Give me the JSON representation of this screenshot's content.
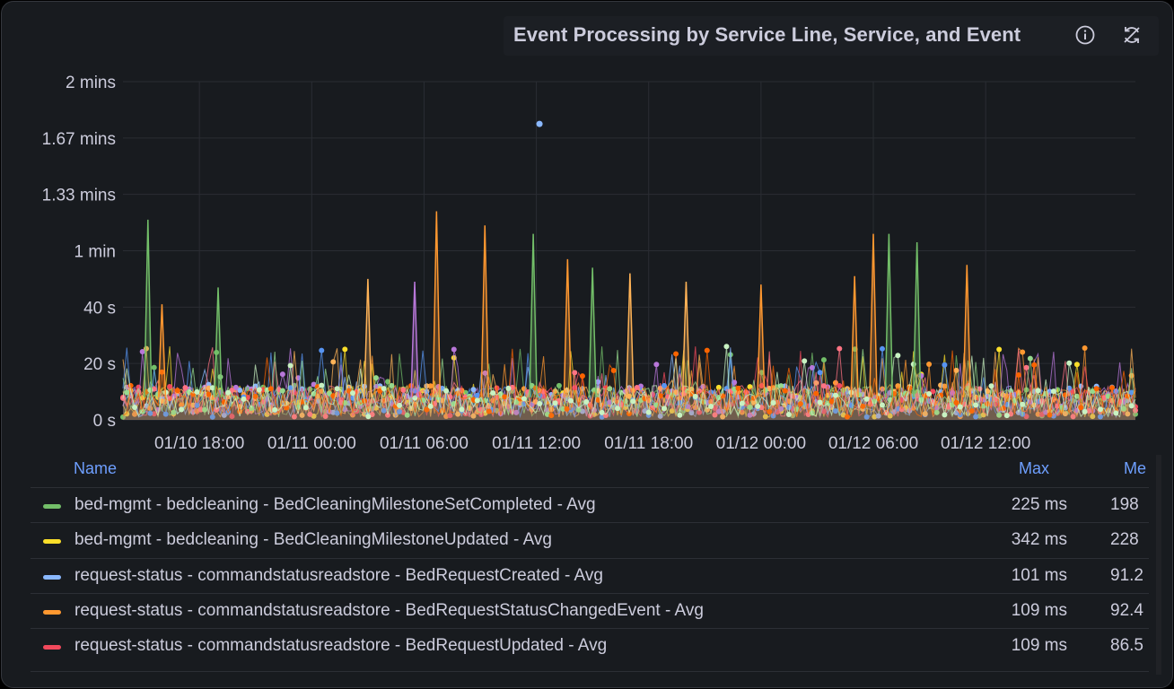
{
  "panel": {
    "title": "Event Processing by Service Line, Service, and Event",
    "icons": [
      "info-icon",
      "sync-off-icon"
    ]
  },
  "chart_data": {
    "type": "line",
    "title": "Event Processing by Service Line, Service, and Event",
    "y_unit": "seconds",
    "ylim": [
      0,
      120
    ],
    "y_ticks": [
      0,
      20,
      40,
      60,
      80,
      100,
      120
    ],
    "y_tick_labels": [
      "0 s",
      "20 s",
      "40 s",
      "1 min",
      "1.33 mins",
      "1.67 mins",
      "2 mins"
    ],
    "x_range": [
      "01/10 13:55",
      "01/12 20:00"
    ],
    "x_tick_labels": [
      "01/10 18:00",
      "01/11 00:00",
      "01/11 06:00",
      "01/11 12:00",
      "01/11 18:00",
      "01/12 00:00",
      "01/12 06:00",
      "01/12 12:00"
    ],
    "grid": true,
    "legend_placement": "bottom",
    "baseline_range_s": [
      1,
      15
    ],
    "peaks": [
      {
        "time": "01/10 15:15",
        "value": 71,
        "color": "#73bf69"
      },
      {
        "time": "01/10 16:00",
        "value": 41,
        "color": "#ff9830"
      },
      {
        "time": "01/10 19:00",
        "value": 47,
        "color": "#73bf69"
      },
      {
        "time": "01/11 03:00",
        "value": 50,
        "color": "#ffb357"
      },
      {
        "time": "01/11 05:30",
        "value": 49,
        "color": "#b877d9"
      },
      {
        "time": "01/11 06:40",
        "value": 74,
        "color": "#ff9830"
      },
      {
        "time": "01/11 09:15",
        "value": 69,
        "color": "#ff9830"
      },
      {
        "time": "01/11 11:50",
        "value": 66,
        "color": "#73bf69"
      },
      {
        "time": "01/11 12:10",
        "value": 105,
        "color": "#8ab8ff",
        "point_only": true
      },
      {
        "time": "01/11 13:40",
        "value": 57,
        "color": "#ff9830"
      },
      {
        "time": "01/11 15:00",
        "value": 54,
        "color": "#73bf69"
      },
      {
        "time": "01/11 17:00",
        "value": 52,
        "color": "#ffb357"
      },
      {
        "time": "01/11 20:00",
        "value": 49,
        "color": "#ffb357"
      },
      {
        "time": "01/12 00:00",
        "value": 48,
        "color": "#ff9830"
      },
      {
        "time": "01/12 05:00",
        "value": 51,
        "color": "#ff9830"
      },
      {
        "time": "01/12 06:00",
        "value": 66,
        "color": "#ff9830"
      },
      {
        "time": "01/12 06:50",
        "value": 66,
        "color": "#73bf69"
      },
      {
        "time": "01/12 08:20",
        "value": 63,
        "color": "#73bf69"
      },
      {
        "time": "01/12 11:00",
        "value": 55,
        "color": "#ff9830"
      }
    ],
    "series": [
      {
        "name": "bed-mgmt - bedcleaning - BedCleaningMilestoneSetCompleted - Avg",
        "color": "#73bf69",
        "max": "225 ms",
        "mean": "198"
      },
      {
        "name": "bed-mgmt - bedcleaning - BedCleaningMilestoneUpdated - Avg",
        "color": "#fade2a",
        "max": "342 ms",
        "mean": "228"
      },
      {
        "name": "request-status - commandstatusreadstore - BedRequestCreated - Avg",
        "color": "#8ab8ff",
        "max": "101 ms",
        "mean": "91.2"
      },
      {
        "name": "request-status - commandstatusreadstore - BedRequestStatusChangedEvent - Avg",
        "color": "#ff9830",
        "max": "109 ms",
        "mean": "92.4"
      },
      {
        "name": "request-status - commandstatusreadstore - BedRequestUpdated - Avg",
        "color": "#f2495c",
        "max": "109 ms",
        "mean": "86.5"
      }
    ]
  },
  "legend": {
    "headers": {
      "name": "Name",
      "max": "Max",
      "mean": "Me"
    }
  }
}
